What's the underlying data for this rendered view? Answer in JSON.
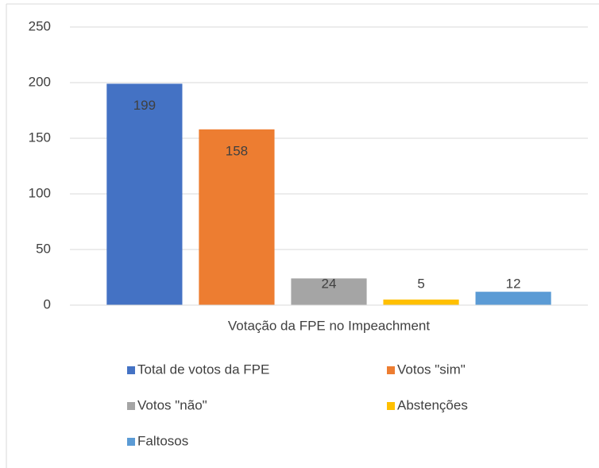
{
  "chart_data": {
    "type": "bar",
    "categories": [
      "Votação da FPE no Impeachment"
    ],
    "series": [
      {
        "name": "Total de votos da FPE",
        "color": "#4472c4",
        "values": [
          199
        ]
      },
      {
        "name": "Votos \"sim\"",
        "color": "#ed7d31",
        "values": [
          158
        ]
      },
      {
        "name": "Votos \"não\"",
        "color": "#a5a5a5",
        "values": [
          24
        ]
      },
      {
        "name": "Abstenções",
        "color": "#ffc000",
        "values": [
          5
        ]
      },
      {
        "name": "Faltosos",
        "color": "#5b9bd5",
        "values": [
          12
        ]
      }
    ],
    "ylim": [
      0,
      250
    ],
    "yticks": [
      0,
      50,
      100,
      150,
      200,
      250
    ],
    "grid": true,
    "legend": "bottom"
  }
}
